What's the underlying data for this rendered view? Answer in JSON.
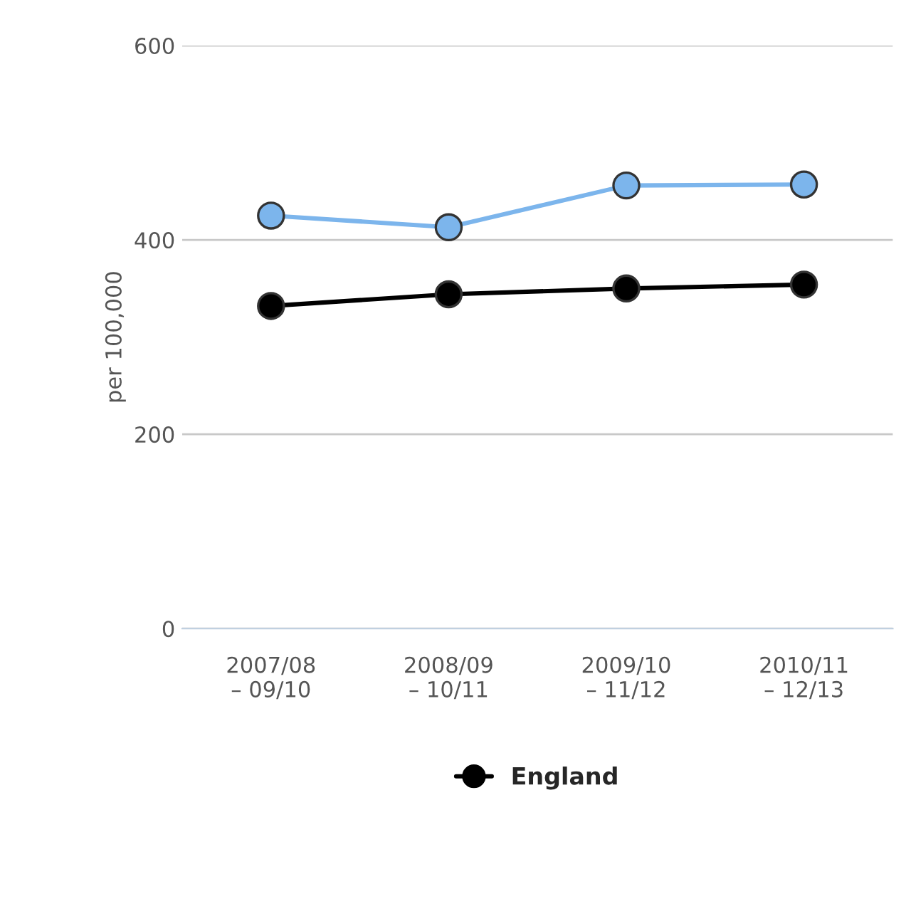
{
  "chart_data": {
    "type": "line",
    "ylabel": "per 100,000",
    "categories": [
      "2007/08\n– 09/10",
      "2008/09\n– 10/11",
      "2009/10\n– 11/12",
      "2010/11\n– 12/13"
    ],
    "series": [
      {
        "color": "#7cb5ec",
        "values": [
          425,
          413,
          456,
          457
        ]
      },
      {
        "name": "England",
        "color": "#000000",
        "values": [
          332,
          344,
          350,
          354
        ]
      }
    ],
    "ylim": [
      0,
      600
    ],
    "yticks": [
      0,
      200,
      400,
      600
    ],
    "grid": "y",
    "legend": "bottom",
    "marker": "circle",
    "line_style": "solid"
  }
}
